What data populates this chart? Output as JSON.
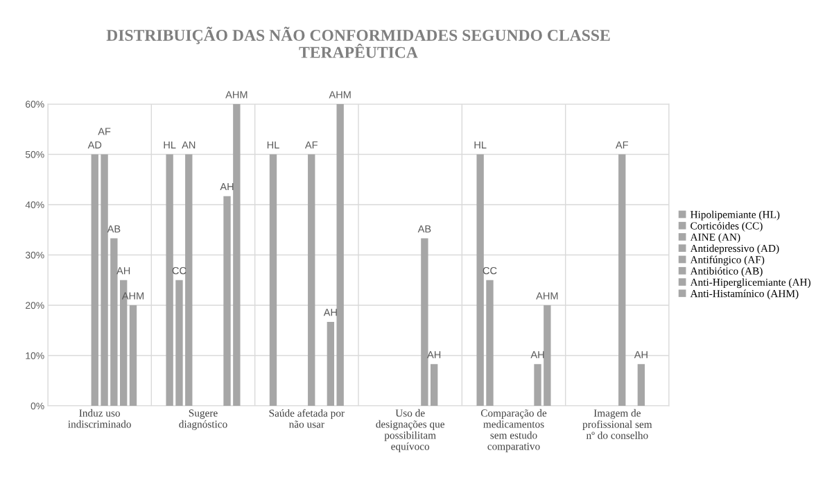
{
  "chart_data": {
    "type": "bar",
    "title": "DISTRIBUIÇÃO DAS NÃO CONFORMIDADES SEGUNDO CLASSE\nTERAPÊUTICA",
    "categories": [
      "Induz uso\nindiscriminado",
      "Sugere\ndiagnóstico",
      "Saúde afetada por\nnão usar",
      "Uso de\ndesignações que\npossibilitam\nequívoco",
      "Comparação de\nmedicamentos\nsem estudo\ncomparativo",
      "Imagem de\nprofissional sem\nnº do conselho"
    ],
    "series": [
      {
        "name": "Hipolipemiante (HL)",
        "color": "#a6a6a6",
        "values": [
          null,
          50,
          50,
          null,
          50,
          null
        ],
        "value_labels": [
          null,
          "HL",
          "HL",
          null,
          "HL",
          null
        ]
      },
      {
        "name": "Corticóides (CC)",
        "color": "#a6a6a6",
        "values": [
          null,
          25,
          null,
          null,
          25,
          null
        ],
        "value_labels": [
          null,
          "CC",
          null,
          null,
          "CC",
          null
        ]
      },
      {
        "name": "AINE (AN)",
        "color": "#a6a6a6",
        "values": [
          null,
          50,
          null,
          null,
          null,
          null
        ],
        "value_labels": [
          null,
          "AN",
          null,
          null,
          null,
          null
        ]
      },
      {
        "name": "Antidepressivo (AD)",
        "color": "#a6a6a6",
        "values": [
          50,
          null,
          null,
          null,
          null,
          null
        ],
        "value_labels": [
          "AD",
          null,
          null,
          null,
          null,
          null
        ]
      },
      {
        "name": "Antifúngico (AF)",
        "color": "#a6a6a6",
        "values": [
          50,
          null,
          50,
          null,
          null,
          50
        ],
        "value_labels": [
          "AF",
          null,
          "AF",
          null,
          null,
          "AF"
        ]
      },
      {
        "name": "Antibiótico (AB)",
        "color": "#a6a6a6",
        "values": [
          33.3,
          null,
          null,
          33.3,
          null,
          null
        ],
        "value_labels": [
          "AB",
          null,
          null,
          "AB",
          null,
          null
        ]
      },
      {
        "name": "Anti-Hiperglicemiante (AH)",
        "color": "#a6a6a6",
        "values": [
          25,
          41.7,
          16.7,
          8.3,
          8.3,
          8.3
        ],
        "value_labels": [
          "AH",
          "AH",
          "AH",
          "AH",
          "AH",
          "AH"
        ]
      },
      {
        "name": "Anti-Histamínico (AHM)",
        "color": "#a6a6a6",
        "values": [
          20,
          60,
          60,
          null,
          20,
          null
        ],
        "value_labels": [
          "AHM",
          "AHM",
          "AHM",
          null,
          "AHM",
          null
        ]
      }
    ],
    "ylim": [
      0,
      60
    ],
    "yticks": [
      {
        "value": 0,
        "label": "0%"
      },
      {
        "value": 10,
        "label": "10%"
      },
      {
        "value": 20,
        "label": "20%"
      },
      {
        "value": 30,
        "label": "30%"
      },
      {
        "value": 40,
        "label": "40%"
      },
      {
        "value": 50,
        "label": "50%"
      },
      {
        "value": 60,
        "label": "60%"
      }
    ],
    "grid": true,
    "legend": "right"
  }
}
